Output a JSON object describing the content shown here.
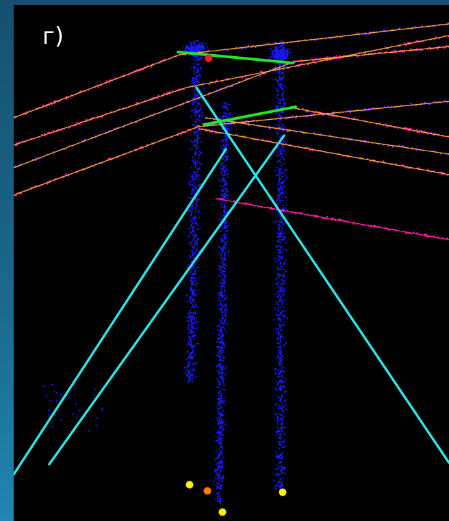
{
  "panel_label": "г)",
  "colors": {
    "background": "#000000",
    "frame_gradient_top": "#16506e",
    "frame_gradient_bottom": "#2186b2",
    "point_cloud": "#1a1aff",
    "cyan_lines": "#2ee6ea",
    "green_segments": "#22e62e",
    "orange_lines": "#ffb030",
    "magenta_points": "#ff1aa0",
    "purple_points": "#9a2aff",
    "red_marker": "#ff1a1a",
    "yellow_markers": "#ffee00",
    "orange_marker": "#ff7a00"
  },
  "legend": []
}
